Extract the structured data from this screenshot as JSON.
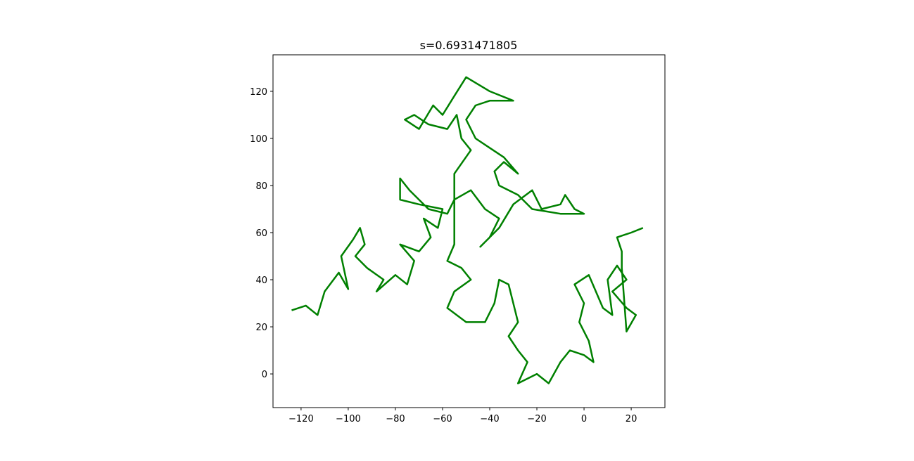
{
  "chart_data": {
    "type": "line",
    "title": "s=0.6931471805",
    "x": [
      -124,
      -118,
      -113,
      -110,
      -104,
      -100,
      -103,
      -98,
      -95,
      -93,
      -97,
      -92,
      -85,
      -88,
      -80,
      -75,
      -72,
      -78,
      -70,
      -65,
      -68,
      -62,
      -60,
      -70,
      -78,
      -78,
      -74,
      -66,
      -58,
      -55,
      -48,
      -42,
      -36,
      -40,
      -44,
      -36,
      -30,
      -22,
      -18,
      -10,
      -8,
      -4,
      0,
      -10,
      -22,
      -28,
      -36,
      -38,
      -34,
      -28,
      -34,
      -40,
      -46,
      -50,
      -46,
      -40,
      -30,
      -40,
      -50,
      -55,
      -60,
      -64,
      -70,
      -76,
      -72,
      -66,
      -58,
      -54,
      -52,
      -48,
      -55,
      -55,
      -58,
      -52,
      -48,
      -55,
      -58,
      -50,
      -42,
      -38,
      -36,
      -32,
      -30,
      -28,
      -32,
      -28,
      -24,
      -28,
      -20,
      -15,
      -10,
      -6,
      0,
      4,
      2,
      -2,
      0,
      -4,
      2,
      8,
      12,
      10,
      14,
      18,
      12,
      18,
      22,
      18,
      16,
      16,
      14,
      20,
      25
    ],
    "series": [
      {
        "color": "#008000",
        "values": [
          27,
          29,
          25,
          35,
          43,
          36,
          50,
          57,
          62,
          55,
          50,
          45,
          40,
          35,
          42,
          38,
          48,
          55,
          52,
          58,
          66,
          62,
          70,
          72,
          74,
          83,
          78,
          70,
          68,
          74,
          78,
          70,
          66,
          58,
          54,
          62,
          72,
          78,
          70,
          72,
          76,
          70,
          68,
          68,
          70,
          76,
          80,
          86,
          90,
          85,
          92,
          96,
          100,
          108,
          114,
          116,
          116,
          120,
          126,
          118,
          110,
          114,
          104,
          108,
          110,
          106,
          104,
          110,
          100,
          95,
          85,
          55,
          48,
          45,
          40,
          35,
          28,
          22,
          22,
          30,
          40,
          38,
          30,
          22,
          16,
          10,
          5,
          -4,
          0,
          -4,
          5,
          10,
          8,
          5,
          14,
          22,
          30,
          38,
          42,
          28,
          25,
          40,
          46,
          40,
          35,
          28,
          25,
          18,
          45,
          52,
          58,
          60,
          62
        ]
      }
    ],
    "xlim": [
      -131.9,
      34.3
    ],
    "ylim": [
      -14.3,
      135.5
    ],
    "xticks": [
      {
        "value": -120,
        "label": "−120"
      },
      {
        "value": -100,
        "label": "−100"
      },
      {
        "value": -80,
        "label": "−80"
      },
      {
        "value": -60,
        "label": "−60"
      },
      {
        "value": -40,
        "label": "−40"
      },
      {
        "value": -20,
        "label": "−20"
      },
      0,
      20
    ],
    "yticks": [
      0,
      20,
      40,
      60,
      80,
      100,
      120
    ]
  }
}
